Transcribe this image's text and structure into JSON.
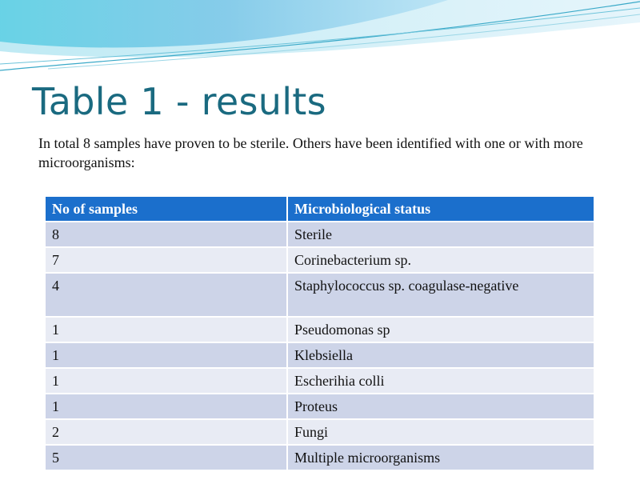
{
  "slide": {
    "title": "Table 1 - results",
    "intro": "In total 8 samples have proven to be sterile. Others have been identified with one or with more microorganisms:",
    "accent_color": "#1b6fcc",
    "title_color": "#1a6a80"
  },
  "table": {
    "headers": [
      "No of samples",
      "Microbiological status"
    ],
    "rows": [
      [
        "8",
        "Sterile"
      ],
      [
        "7",
        "Corinebacterium sp."
      ],
      [
        "4",
        "Staphylococcus sp. coagulase-negative"
      ],
      [
        "1",
        "Pseudomonas sp"
      ],
      [
        "1",
        "Klebsiella"
      ],
      [
        "1",
        "Escherihia colli"
      ],
      [
        "1",
        "Proteus"
      ],
      [
        "2",
        "Fungi"
      ],
      [
        "5",
        "Multiple microorganisms"
      ]
    ]
  }
}
